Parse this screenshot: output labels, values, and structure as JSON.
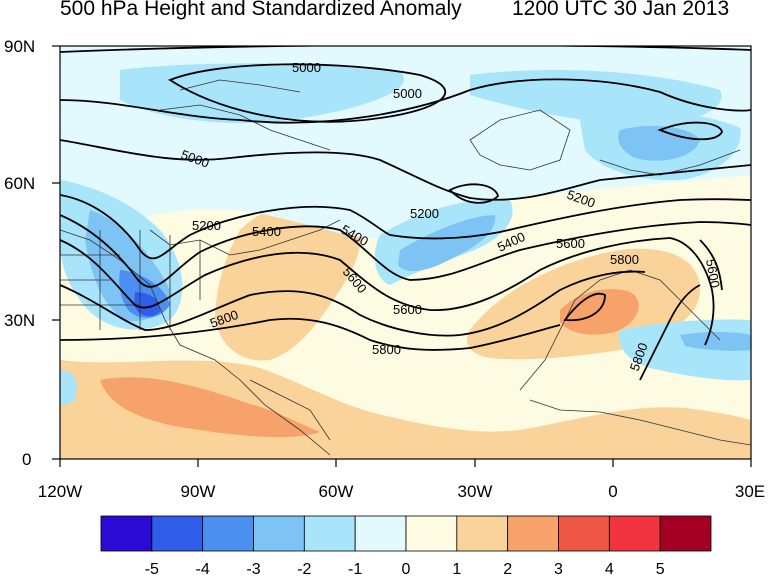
{
  "title_left": "500 hPa Height and Standardized Anomaly",
  "title_right": "1200 UTC 30 Jan 2013",
  "map": {
    "lat_labels": [
      "90N",
      "60N",
      "30N",
      "0"
    ],
    "lon_labels": [
      "120W",
      "90W",
      "60W",
      "30W",
      "0",
      "30E"
    ],
    "contour_labels": [
      "5000",
      "5000",
      "5000",
      "5200",
      "5200",
      "5200",
      "5400",
      "5400",
      "5400",
      "5600",
      "5600",
      "5600",
      "5800",
      "5800",
      "5800",
      "5800",
      "5600"
    ]
  },
  "colorbar": {
    "labels": [
      "-5",
      "-4",
      "-3",
      "-2",
      "-1",
      "0",
      "1",
      "2",
      "3",
      "4",
      "5"
    ],
    "colors": [
      "#2a0ad4",
      "#2f5ee8",
      "#4b8ff0",
      "#7dc4f5",
      "#a8e4fa",
      "#e2f9fd",
      "#fefbe3",
      "#fad39b",
      "#f8a26b",
      "#ee5745",
      "#f1343f",
      "#a50024"
    ]
  }
}
